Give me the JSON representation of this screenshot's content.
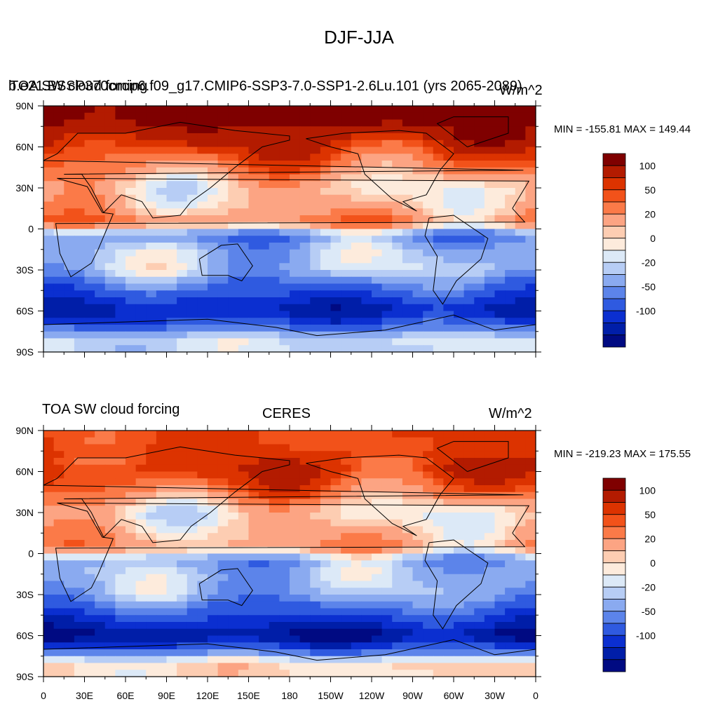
{
  "title": "DJF-JJA",
  "panels": [
    {
      "left_label": "TOA SW cloud forcing",
      "center_label": "b.e21.BSSP370cmip6.f09_g17.CMIP6-SSP3-7.0-SSP1-2.6Lu.101 (yrs 2065-2089)",
      "right_label": "W/m^2",
      "minmax": "MIN = -155.81 MAX = 149.44"
    },
    {
      "left_label": "TOA SW cloud forcing",
      "center_label": "CERES",
      "right_label": "W/m^2",
      "minmax": "MIN = -219.23 MAX = 175.55"
    }
  ],
  "axes": {
    "y_ticks": [
      "90N",
      "60N",
      "30N",
      "0",
      "30S",
      "60S",
      "90S"
    ],
    "x_ticks": [
      "0",
      "30E",
      "60E",
      "90E",
      "120E",
      "150E",
      "180",
      "150W",
      "120W",
      "90W",
      "60W",
      "30W",
      "0"
    ]
  },
  "colorbar": {
    "labels": [
      "100",
      "50",
      "20",
      "0",
      "-20",
      "-50",
      "-100"
    ],
    "colors": [
      "#7f0000",
      "#b31b00",
      "#dc3300",
      "#f2521a",
      "#fb7a48",
      "#fca483",
      "#fdcdb2",
      "#fdebdc",
      "#dce9f7",
      "#b7cdf5",
      "#8aaaf0",
      "#5c84ea",
      "#2f5ae0",
      "#0b2fd0",
      "#001ea8",
      "#000a82"
    ]
  },
  "chart_data": [
    {
      "type": "heatmap",
      "title": "DJF-JJA",
      "subtitle": "b.e21.BSSP370cmip6.f09_g17.CMIP6-SSP3-7.0-SSP1-2.6Lu.101 (yrs 2065-2089)",
      "variable": "TOA SW cloud forcing",
      "units": "W/m^2",
      "min": -155.81,
      "max": 149.44,
      "xlim": [
        0,
        360
      ],
      "ylim": [
        -90,
        90
      ],
      "colorbar_levels": [
        -100,
        -50,
        -20,
        0,
        20,
        50,
        100
      ],
      "zonal_profile": [
        {
          "lat": 80,
          "value": 110
        },
        {
          "lat": 60,
          "value": 70
        },
        {
          "lat": 45,
          "value": 40
        },
        {
          "lat": 30,
          "value": 10
        },
        {
          "lat": 15,
          "value": 20
        },
        {
          "lat": 5,
          "value": 40
        },
        {
          "lat": -5,
          "value": -40
        },
        {
          "lat": -15,
          "value": -20
        },
        {
          "lat": -30,
          "value": -15
        },
        {
          "lat": -45,
          "value": -60
        },
        {
          "lat": -60,
          "value": -110
        },
        {
          "lat": -80,
          "value": -10
        }
      ]
    },
    {
      "type": "heatmap",
      "title": "CERES",
      "variable": "TOA SW cloud forcing",
      "units": "W/m^2",
      "min": -219.23,
      "max": 175.55,
      "xlim": [
        0,
        360
      ],
      "ylim": [
        -90,
        90
      ],
      "colorbar_levels": [
        -100,
        -50,
        -20,
        0,
        20,
        50,
        100
      ],
      "zonal_profile": [
        {
          "lat": 80,
          "value": 60
        },
        {
          "lat": 60,
          "value": 70
        },
        {
          "lat": 45,
          "value": 45
        },
        {
          "lat": 30,
          "value": 5
        },
        {
          "lat": 15,
          "value": 20
        },
        {
          "lat": 5,
          "value": 30
        },
        {
          "lat": -5,
          "value": -30
        },
        {
          "lat": -15,
          "value": -20
        },
        {
          "lat": -30,
          "value": -25
        },
        {
          "lat": -45,
          "value": -70
        },
        {
          "lat": -60,
          "value": -130
        },
        {
          "lat": -80,
          "value": 10
        }
      ]
    }
  ]
}
